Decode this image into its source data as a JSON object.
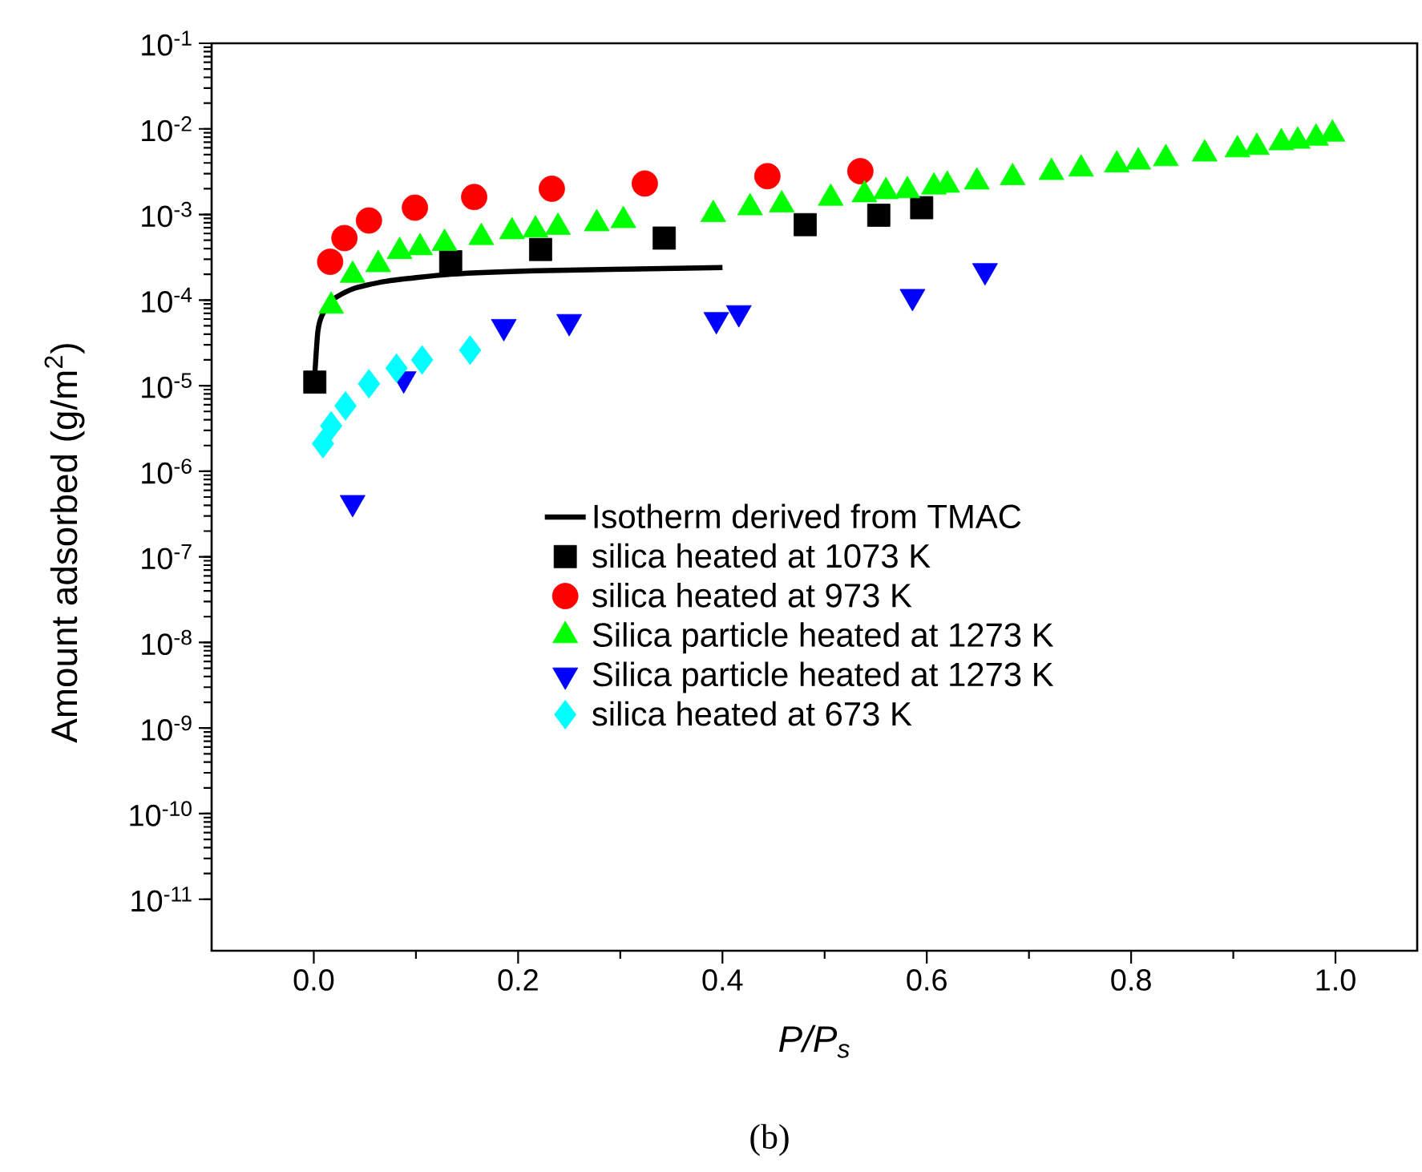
{
  "chart_data": {
    "type": "scatter",
    "xlabel": "P/P$_{s}$",
    "ylabel": "Amount adsorbed (g/m$^{2}$)",
    "log": "y",
    "legend": "bottom right",
    "xlim": [
      -0.1,
      1.08
    ],
    "ylim": [
      2.5e-12,
      0.1
    ],
    "xticks": [
      {
        "value": 0,
        "label": "0.0"
      },
      {
        "value": 0.2,
        "label": "0.2"
      },
      {
        "value": 0.4,
        "label": "0.4"
      },
      {
        "value": 0.6,
        "label": "0.6"
      },
      {
        "value": 0.8,
        "label": "0.8"
      },
      {
        "value": 1,
        "label": "1.0"
      }
    ],
    "yticks": [
      {
        "value": 1e-11,
        "label": "10$^{-11}$"
      },
      {
        "value": 1e-10,
        "label": "10$^{-10}$"
      },
      {
        "value": 1e-09,
        "label": "10$^{-9}$"
      },
      {
        "value": 1e-08,
        "label": "10$^{-8}$"
      },
      {
        "value": 1e-07,
        "label": "10$^{-7}$"
      },
      {
        "value": 1e-06,
        "label": "10$^{-6}$"
      },
      {
        "value": 1e-05,
        "label": "10$^{-5}$"
      },
      {
        "value": 0.0001,
        "label": "10$^{-4}$"
      },
      {
        "value": 0.001,
        "label": "10$^{-3}$"
      },
      {
        "value": 0.01,
        "label": "10$^{-2}$"
      },
      {
        "value": 0.1,
        "label": "10$^{-1}$"
      }
    ],
    "annotations": [
      "(b)"
    ],
    "series": [
      {
        "name": "Isotherm derived from TMAC",
        "type": "line",
        "marker": "none",
        "line_style": "solid",
        "color": "#000000",
        "x": [
          0.001,
          0.004,
          0.008,
          0.018,
          0.038,
          0.071,
          0.134,
          0.217,
          0.4
        ],
        "values": [
          1.35e-05,
          4.3e-05,
          6.6e-05,
          0.0001,
          0.000135,
          0.000166,
          0.0002,
          0.00022,
          0.00024
        ]
      },
      {
        "name": "silica heated at 1073 K",
        "marker": "square",
        "color": "#000000",
        "x": [
          0.001,
          0.134,
          0.222,
          0.343,
          0.481,
          0.553,
          0.595
        ],
        "values": [
          1.1e-05,
          0.00028,
          0.00039,
          0.00053,
          0.00076,
          0.00098,
          0.0012
        ]
      },
      {
        "name": "silica heated at 973 K",
        "marker": "circle",
        "color": "#ff0000",
        "x": [
          0.016,
          0.03,
          0.054,
          0.099,
          0.157,
          0.233,
          0.324,
          0.444,
          0.535
        ],
        "values": [
          0.00028,
          0.00053,
          0.00085,
          0.0012,
          0.0016,
          0.002,
          0.0023,
          0.0028,
          0.0032
        ]
      },
      {
        "name": "Silica particle heated at 1273 K",
        "marker": "triangle",
        "color": "#00ff00",
        "x": [
          0.017,
          0.038,
          0.063,
          0.084,
          0.104,
          0.128,
          0.164,
          0.194,
          0.217,
          0.239,
          0.277,
          0.303,
          0.391,
          0.427,
          0.458,
          0.506,
          0.539,
          0.56,
          0.581,
          0.607,
          0.62,
          0.649,
          0.684,
          0.722,
          0.751,
          0.786,
          0.807,
          0.834,
          0.872,
          0.904,
          0.923,
          0.947,
          0.963,
          0.981,
          0.997
        ],
        "values": [
          8.5e-05,
          0.000195,
          0.00026,
          0.00037,
          0.00041,
          0.00046,
          0.00054,
          0.00063,
          0.00066,
          0.00071,
          0.00078,
          0.00085,
          0.001,
          0.0012,
          0.0013,
          0.00155,
          0.0017,
          0.00185,
          0.0019,
          0.0021,
          0.0022,
          0.0024,
          0.0027,
          0.0031,
          0.0034,
          0.0038,
          0.0041,
          0.0045,
          0.0051,
          0.0057,
          0.0061,
          0.0069,
          0.0072,
          0.0078,
          0.0087
        ]
      },
      {
        "name": "Silica particle heated at 1273 K",
        "marker": "triangle-down",
        "color": "#0000ff",
        "x": [
          0.038,
          0.088,
          0.186,
          0.25,
          0.394,
          0.416,
          0.586,
          0.657
        ],
        "values": [
          4.3e-07,
          1.2e-05,
          4.9e-05,
          5.6e-05,
          5.9e-05,
          7.1e-05,
          0.00011,
          0.00022
        ]
      },
      {
        "name": "silica heated at 673 K",
        "marker": "diamond",
        "color": "#00ffff",
        "x": [
          0.009,
          0.017,
          0.031,
          0.054,
          0.081,
          0.106,
          0.153
        ],
        "values": [
          2.1e-06,
          3.4e-06,
          5.8e-06,
          1.05e-05,
          1.6e-05,
          2e-05,
          2.6e-05
        ]
      }
    ]
  }
}
